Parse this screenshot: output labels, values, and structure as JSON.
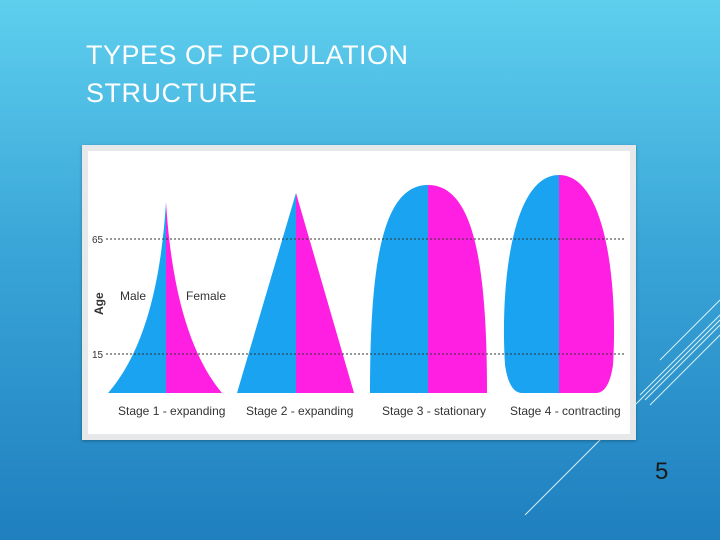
{
  "slide": {
    "title_line1": "TYPES OF POPULATION",
    "title_line2": "STRUCTURE",
    "page_number": "5"
  },
  "figure": {
    "y_axis_label": "Age",
    "age_markers": [
      "65",
      "15"
    ],
    "sex_labels": {
      "male": "Male",
      "female": "Female"
    },
    "stages": [
      {
        "label": "Stage 1 - expanding"
      },
      {
        "label": "Stage 2 - expanding"
      },
      {
        "label": "Stage 3 - stationary"
      },
      {
        "label": "Stage 4 - contracting"
      }
    ],
    "colors": {
      "male": "#1aa3f0",
      "female": "#ff1fe3",
      "panel": "#ffffff",
      "card": "#e6e8ea"
    }
  }
}
